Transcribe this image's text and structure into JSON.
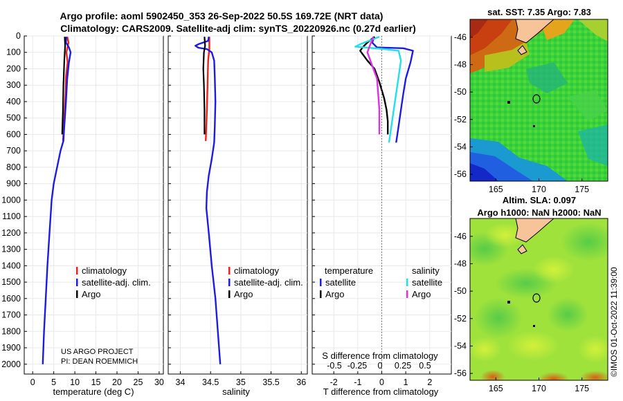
{
  "header": {
    "title_line1": "Argo profile: aoml 5902450_353 26-Sep-2022 50.5S 169.72E (NRT data)",
    "title_line2": "Climatology: CARS2009. Satellite-adj clim: synTS_20220926.nc (0.27d earlier)"
  },
  "credit": {
    "line1": "US ARGO PROJECT",
    "line2": "PI: DEAN ROEMMICH",
    "imos": "©IMOS 01-Oct-2022 11:39:00"
  },
  "colors": {
    "climatology": "#e8231d",
    "satellite": "#1c1ce0",
    "argo": "#000000",
    "sat_salinity": "#22e0e8",
    "argo_salinity": "#e030e0"
  },
  "chart_data": [
    {
      "type": "line",
      "name": "temperature",
      "xlabel": "temperature (deg C)",
      "ylabel": "",
      "xlim": [
        -2,
        31
      ],
      "ylim": [
        2060,
        0
      ],
      "xticks": [
        0,
        5,
        10,
        15,
        20,
        25,
        30
      ],
      "yticks": [
        0,
        100,
        200,
        300,
        400,
        500,
        600,
        700,
        800,
        900,
        1000,
        1100,
        1200,
        1300,
        1400,
        1500,
        1600,
        1700,
        1800,
        1900,
        2000
      ],
      "legend": [
        "climatology",
        "satellite-adj. clim.",
        "Argo"
      ],
      "series": [
        {
          "name": "climatology",
          "points": [
            [
              8.2,
              5
            ],
            [
              8.5,
              40
            ],
            [
              8.0,
              100
            ],
            [
              8.3,
              160
            ],
            [
              7.9,
              250
            ],
            [
              7.8,
              350
            ],
            [
              7.6,
              450
            ],
            [
              7.4,
              550
            ],
            [
              7.2,
              640
            ]
          ]
        },
        {
          "name": "satellite-adj. clim.",
          "points": [
            [
              8.0,
              5
            ],
            [
              7.9,
              40
            ],
            [
              8.6,
              70
            ],
            [
              9.0,
              100
            ],
            [
              8.6,
              160
            ],
            [
              8.2,
              260
            ],
            [
              7.9,
              400
            ],
            [
              7.5,
              550
            ],
            [
              7.3,
              640
            ],
            [
              6.6,
              700
            ],
            [
              5.8,
              800
            ],
            [
              5.0,
              900
            ],
            [
              4.5,
              1000
            ],
            [
              4.0,
              1200
            ],
            [
              3.5,
              1400
            ],
            [
              3.1,
              1600
            ],
            [
              2.7,
              1800
            ],
            [
              2.4,
              2000
            ]
          ]
        },
        {
          "name": "Argo",
          "points": [
            [
              7.6,
              5
            ],
            [
              7.7,
              60
            ],
            [
              7.5,
              150
            ],
            [
              7.3,
              300
            ],
            [
              7.2,
              450
            ],
            [
              7.0,
              600
            ]
          ]
        }
      ]
    },
    {
      "type": "line",
      "name": "salinity",
      "xlabel": "salinity",
      "ylabel": "",
      "xlim": [
        33.8,
        36.1
      ],
      "ylim": [
        2060,
        0
      ],
      "xticks": [
        34,
        34.5,
        35,
        35.5,
        36
      ],
      "legend": [
        "climatology",
        "satellite-adj. clim.",
        "Argo"
      ],
      "series": [
        {
          "name": "climatology",
          "points": [
            [
              34.48,
              5
            ],
            [
              34.48,
              80
            ],
            [
              34.46,
              150
            ],
            [
              34.45,
              300
            ],
            [
              34.44,
              450
            ],
            [
              34.43,
              550
            ],
            [
              34.42,
              640
            ]
          ]
        },
        {
          "name": "satellite-adj. clim.",
          "points": [
            [
              34.47,
              5
            ],
            [
              34.46,
              30
            ],
            [
              34.3,
              50
            ],
            [
              34.25,
              60
            ],
            [
              34.3,
              72
            ],
            [
              34.44,
              80
            ],
            [
              34.52,
              100
            ],
            [
              34.56,
              150
            ],
            [
              34.57,
              250
            ],
            [
              34.58,
              400
            ],
            [
              34.57,
              550
            ],
            [
              34.56,
              650
            ],
            [
              34.52,
              750
            ],
            [
              34.47,
              850
            ],
            [
              34.44,
              950
            ],
            [
              34.43,
              1050
            ],
            [
              34.47,
              1200
            ],
            [
              34.52,
              1400
            ],
            [
              34.58,
              1600
            ],
            [
              34.62,
              1800
            ],
            [
              34.66,
              2000
            ]
          ]
        },
        {
          "name": "Argo",
          "points": [
            [
              34.4,
              5
            ],
            [
              34.41,
              60
            ],
            [
              34.39,
              100
            ],
            [
              34.38,
              200
            ],
            [
              34.39,
              300
            ],
            [
              34.4,
              450
            ],
            [
              34.4,
              600
            ]
          ]
        }
      ]
    },
    {
      "type": "line",
      "name": "difference from climatology",
      "xlabel": "T difference from climatology",
      "xlabel_top": "S difference from climatology",
      "xlim": [
        -2.9,
        2.9
      ],
      "ylim": [
        2060,
        0
      ],
      "xticks": [
        -2,
        -1,
        0,
        1,
        2
      ],
      "xticks_salinity": [
        "-0.5",
        "-0.25",
        "0",
        "0.25",
        "0.5"
      ],
      "legend_headers": [
        "temperature",
        "salinity"
      ],
      "legend": [
        "satellite",
        "Argo",
        "satellite",
        "Argo"
      ],
      "series": [
        {
          "name": "temperature satellite",
          "points": [
            [
              -0.3,
              5
            ],
            [
              -0.4,
              40
            ],
            [
              -0.2,
              70
            ],
            [
              0.9,
              75
            ],
            [
              1.3,
              90
            ],
            [
              1.2,
              160
            ],
            [
              1.0,
              260
            ],
            [
              0.9,
              350
            ],
            [
              0.8,
              450
            ],
            [
              0.7,
              550
            ],
            [
              0.6,
              650
            ]
          ]
        },
        {
          "name": "temperature Argo",
          "points": [
            [
              -0.3,
              5
            ],
            [
              -0.6,
              40
            ],
            [
              -0.8,
              70
            ],
            [
              -0.9,
              90
            ],
            [
              -0.6,
              150
            ],
            [
              -0.3,
              200
            ],
            [
              -0.1,
              280
            ],
            [
              0.1,
              380
            ],
            [
              0.2,
              450
            ],
            [
              0.25,
              520
            ],
            [
              0.25,
              600
            ]
          ]
        },
        {
          "name": "salinity satellite",
          "points": [
            [
              -0.1,
              5
            ],
            [
              -0.9,
              50
            ],
            [
              -1.1,
              65
            ],
            [
              0.1,
              80
            ],
            [
              0.7,
              90
            ],
            [
              0.8,
              150
            ],
            [
              0.7,
              250
            ],
            [
              0.6,
              350
            ],
            [
              0.5,
              450
            ],
            [
              0.4,
              550
            ],
            [
              0.3,
              650
            ]
          ]
        },
        {
          "name": "salinity Argo",
          "points": [
            [
              -0.35,
              5
            ],
            [
              -0.5,
              60
            ],
            [
              -0.6,
              100
            ],
            [
              -0.4,
              180
            ],
            [
              -0.2,
              260
            ],
            [
              -0.15,
              350
            ],
            [
              -0.1,
              450
            ],
            [
              -0.1,
              550
            ],
            [
              -0.1,
              600
            ]
          ]
        }
      ]
    },
    {
      "type": "heatmap",
      "name": "sst_map",
      "title": "sat. SST: 7.35 Argo: 7.83",
      "xlim": [
        162,
        178
      ],
      "ylim": [
        -56.5,
        -44.7
      ],
      "xticks": [
        165,
        170,
        175
      ],
      "yticks": [
        -46,
        -48,
        -50,
        -52,
        -54,
        -56
      ],
      "marker": [
        169.72,
        -50.5
      ]
    },
    {
      "type": "heatmap",
      "name": "sla_map",
      "title_line1": "Altim. SLA: 0.097",
      "title_line2": "Argo h1000: NaN h2000: NaN",
      "xlim": [
        162,
        178
      ],
      "ylim": [
        -56.5,
        -44.7
      ],
      "xticks": [
        165,
        170,
        175
      ],
      "yticks": [
        -46,
        -48,
        -50,
        -52,
        -54,
        -56
      ],
      "marker": [
        169.72,
        -50.5
      ]
    }
  ]
}
